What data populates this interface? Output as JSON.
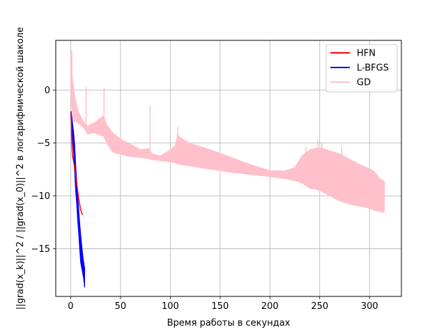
{
  "chart_data": {
    "type": "line",
    "title": "",
    "xlabel": "Время работы в секундах",
    "ylabel": "||grad(x_k)||^2 / ||grad(x_0)||^2 в логарифмической шаколе",
    "xlim": [
      -15,
      332
    ],
    "ylim": [
      -19.5,
      4.7
    ],
    "xticks": [
      0,
      50,
      100,
      150,
      200,
      250,
      300
    ],
    "yticks": [
      -15,
      -10,
      -5,
      0
    ],
    "grid": true,
    "legend_position": "top-right",
    "series": [
      {
        "name": "HFN",
        "color": "#ff0000",
        "style": "line",
        "points": [
          [
            0.5,
            -2.0
          ],
          [
            1,
            -4.5
          ],
          [
            1.5,
            -5.8
          ],
          [
            2,
            -6.3
          ],
          [
            3,
            -6.8
          ],
          [
            4,
            -7.3
          ],
          [
            5,
            -8.0
          ],
          [
            6,
            -8.8
          ],
          [
            7,
            -9.5
          ],
          [
            8,
            -10.2
          ],
          [
            9,
            -10.8
          ],
          [
            10,
            -11.3
          ],
          [
            11,
            -11.6
          ],
          [
            12,
            -11.8
          ]
        ]
      },
      {
        "name": "L-BFGS",
        "color": "#0000ff",
        "style": "oscillating",
        "upper": [
          [
            0.2,
            -2.0
          ],
          [
            1,
            -2.4
          ],
          [
            2,
            -3.2
          ],
          [
            3,
            -4.0
          ],
          [
            4,
            -5.2
          ],
          [
            5,
            -7.0
          ],
          [
            6,
            -8.5
          ],
          [
            7,
            -10.0
          ],
          [
            8,
            -11.2
          ],
          [
            9,
            -12.5
          ],
          [
            10,
            -13.6
          ],
          [
            11,
            -14.6
          ],
          [
            12,
            -15.5
          ],
          [
            13,
            -16.2
          ],
          [
            14,
            -16.8
          ]
        ],
        "lower": [
          [
            0.2,
            -2.6
          ],
          [
            1,
            -3.5
          ],
          [
            2,
            -4.8
          ],
          [
            3,
            -6.0
          ],
          [
            4,
            -7.8
          ],
          [
            5,
            -9.6
          ],
          [
            6,
            -10.7
          ],
          [
            7,
            -12.3
          ],
          [
            8,
            -13.5
          ],
          [
            9,
            -15.0
          ],
          [
            10,
            -16.3
          ],
          [
            11,
            -16.8
          ],
          [
            12,
            -17.3
          ],
          [
            13,
            -17.8
          ],
          [
            14,
            -18.7
          ]
        ]
      },
      {
        "name": "GD",
        "color": "#ffc0cb",
        "style": "oscillating",
        "upper": [
          [
            0,
            3.7
          ],
          [
            1,
            2.2
          ],
          [
            2,
            1.0
          ],
          [
            3,
            0.3
          ],
          [
            5,
            -1.0
          ],
          [
            8,
            -2.1
          ],
          [
            12,
            -2.8
          ],
          [
            15,
            -3.2
          ],
          [
            17,
            -3.4
          ],
          [
            20,
            -3.2
          ],
          [
            25,
            -3.0
          ],
          [
            30,
            -2.6
          ],
          [
            33,
            -2.4
          ],
          [
            36,
            -3.2
          ],
          [
            42,
            -4.0
          ],
          [
            50,
            -4.6
          ],
          [
            60,
            -5.1
          ],
          [
            70,
            -5.6
          ],
          [
            78,
            -5.5
          ],
          [
            82,
            -6.0
          ],
          [
            90,
            -6.2
          ],
          [
            100,
            -5.6
          ],
          [
            105,
            -5.2
          ],
          [
            107,
            -4.2
          ],
          [
            112,
            -4.6
          ],
          [
            120,
            -5.0
          ],
          [
            140,
            -5.6
          ],
          [
            160,
            -6.3
          ],
          [
            180,
            -7.0
          ],
          [
            200,
            -7.6
          ],
          [
            215,
            -7.6
          ],
          [
            225,
            -7.3
          ],
          [
            232,
            -6.2
          ],
          [
            240,
            -5.6
          ],
          [
            250,
            -5.4
          ],
          [
            260,
            -5.7
          ],
          [
            270,
            -6.0
          ],
          [
            280,
            -6.5
          ],
          [
            290,
            -7.0
          ],
          [
            300,
            -7.4
          ],
          [
            305,
            -7.7
          ],
          [
            310,
            -8.3
          ],
          [
            315,
            -8.6
          ]
        ],
        "lower": [
          [
            0,
            -0.2
          ],
          [
            1,
            -1.6
          ],
          [
            2,
            -2.5
          ],
          [
            3,
            -3.0
          ],
          [
            5,
            -3.0
          ],
          [
            8,
            -3.2
          ],
          [
            12,
            -3.5
          ],
          [
            15,
            -3.8
          ],
          [
            17,
            -4.2
          ],
          [
            20,
            -4.1
          ],
          [
            25,
            -4.1
          ],
          [
            30,
            -4.3
          ],
          [
            33,
            -4.4
          ],
          [
            36,
            -5.0
          ],
          [
            42,
            -5.9
          ],
          [
            50,
            -6.1
          ],
          [
            60,
            -6.3
          ],
          [
            70,
            -6.4
          ],
          [
            78,
            -6.5
          ],
          [
            82,
            -6.6
          ],
          [
            90,
            -6.7
          ],
          [
            100,
            -6.8
          ],
          [
            105,
            -6.9
          ],
          [
            107,
            -7.0
          ],
          [
            112,
            -7.1
          ],
          [
            120,
            -7.2
          ],
          [
            140,
            -7.5
          ],
          [
            160,
            -7.8
          ],
          [
            180,
            -8.0
          ],
          [
            200,
            -8.2
          ],
          [
            215,
            -8.4
          ],
          [
            225,
            -8.6
          ],
          [
            232,
            -8.8
          ],
          [
            240,
            -9.3
          ],
          [
            250,
            -9.5
          ],
          [
            260,
            -10.0
          ],
          [
            270,
            -10.5
          ],
          [
            280,
            -10.8
          ],
          [
            290,
            -11.0
          ],
          [
            300,
            -11.2
          ],
          [
            305,
            -11.4
          ],
          [
            310,
            -11.5
          ],
          [
            315,
            -11.6
          ]
        ],
        "spikes": [
          [
            0.6,
            3.8
          ],
          [
            1.2,
            3.6
          ],
          [
            15.5,
            0.3
          ],
          [
            33.5,
            0.2
          ],
          [
            79.5,
            -1.5
          ],
          [
            107.5,
            -3.4
          ],
          [
            236,
            -5.4
          ],
          [
            248,
            -4.7
          ],
          [
            252,
            -4.9
          ],
          [
            260,
            -5.9
          ],
          [
            272,
            -5.3
          ],
          [
            282,
            -7.2
          ],
          [
            286,
            -6.7
          ]
        ]
      }
    ]
  }
}
